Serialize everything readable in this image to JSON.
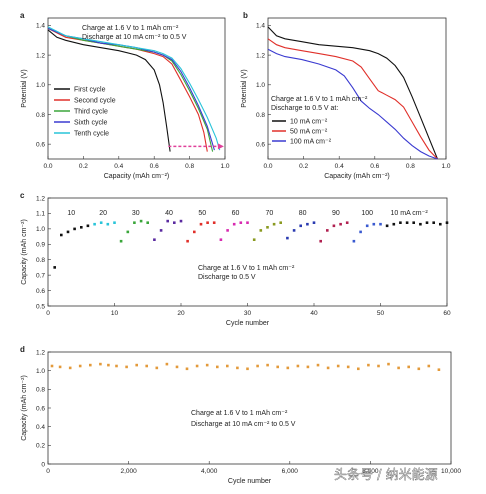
{
  "watermark": "头条号 / 纳米能源",
  "chart_data": [
    {
      "panel": "a",
      "type": "line",
      "xlabel": "Capacity (mAh cm⁻²)",
      "ylabel": "Potential (V)",
      "xlim": [
        0,
        1.0
      ],
      "ylim": [
        0.5,
        1.45
      ],
      "xticks": [
        "0.0",
        "0.2",
        "0.4",
        "0.6",
        "0.8",
        "1.0"
      ],
      "yticks": [
        "0.6",
        "0.8",
        "1.0",
        "1.2",
        "1.4"
      ],
      "annotations": [
        "Charge at 1.6 V to 1 mAh cm⁻²",
        "Discharge at 10 mA cm⁻² to 0.5 V"
      ],
      "series": [
        {
          "name": "First cycle",
          "color": "#111111",
          "x": [
            0,
            0.05,
            0.1,
            0.2,
            0.3,
            0.4,
            0.5,
            0.55,
            0.6,
            0.63,
            0.65,
            0.67,
            0.69
          ],
          "y": [
            1.37,
            1.32,
            1.3,
            1.27,
            1.25,
            1.23,
            1.2,
            1.17,
            1.1,
            1.0,
            0.88,
            0.72,
            0.55
          ]
        },
        {
          "name": "Second cycle",
          "color": "#e0302a",
          "x": [
            0,
            0.1,
            0.2,
            0.3,
            0.4,
            0.5,
            0.6,
            0.65,
            0.7,
            0.75,
            0.8,
            0.85,
            0.88,
            0.9
          ],
          "y": [
            1.38,
            1.32,
            1.3,
            1.28,
            1.26,
            1.24,
            1.21,
            1.19,
            1.14,
            1.03,
            0.92,
            0.8,
            0.68,
            0.55
          ]
        },
        {
          "name": "Third cycle",
          "color": "#3aa63a",
          "x": [
            0,
            0.1,
            0.2,
            0.3,
            0.4,
            0.5,
            0.6,
            0.65,
            0.7,
            0.75,
            0.8,
            0.85,
            0.9,
            0.93
          ],
          "y": [
            1.38,
            1.33,
            1.3,
            1.28,
            1.26,
            1.24,
            1.22,
            1.2,
            1.16,
            1.07,
            0.96,
            0.84,
            0.7,
            0.55
          ]
        },
        {
          "name": "Sixth cycle",
          "color": "#3a3ad0",
          "x": [
            0,
            0.1,
            0.2,
            0.3,
            0.4,
            0.5,
            0.6,
            0.65,
            0.7,
            0.75,
            0.8,
            0.85,
            0.9,
            0.94
          ],
          "y": [
            1.38,
            1.33,
            1.31,
            1.28,
            1.27,
            1.25,
            1.22,
            1.2,
            1.17,
            1.09,
            0.98,
            0.86,
            0.72,
            0.56
          ]
        },
        {
          "name": "Tenth cycle",
          "color": "#29c4d9",
          "x": [
            0,
            0.1,
            0.2,
            0.3,
            0.4,
            0.5,
            0.6,
            0.65,
            0.7,
            0.75,
            0.8,
            0.85,
            0.9,
            0.95,
            0.97
          ],
          "y": [
            1.39,
            1.33,
            1.31,
            1.29,
            1.27,
            1.25,
            1.23,
            1.21,
            1.18,
            1.11,
            1.01,
            0.9,
            0.78,
            0.64,
            0.56
          ]
        }
      ],
      "arrow": {
        "color": "#e0409a",
        "x": [
          0.68,
          0.96
        ],
        "y": 0.585
      }
    },
    {
      "panel": "b",
      "type": "line",
      "xlabel": "Capacity (mAh cm⁻²)",
      "ylabel": "Potential (V)",
      "xlim": [
        0,
        1.05
      ],
      "ylim": [
        0.5,
        1.45
      ],
      "xticks": [
        "0.0",
        "0.2",
        "0.4",
        "0.6",
        "0.8",
        "1.0"
      ],
      "yticks": [
        "0.6",
        "0.8",
        "1.0",
        "1.2",
        "1.4"
      ],
      "annotations": [
        "Charge at 1.6 V to 1 mAh cm⁻²",
        "Discharge to 0.5 V at:"
      ],
      "series": [
        {
          "name": "10 mA cm⁻²",
          "color": "#111111",
          "x": [
            0,
            0.05,
            0.1,
            0.2,
            0.3,
            0.4,
            0.5,
            0.6,
            0.65,
            0.7,
            0.75,
            0.8,
            0.85,
            0.9,
            0.95,
            1.0
          ],
          "y": [
            1.39,
            1.33,
            1.31,
            1.29,
            1.27,
            1.26,
            1.25,
            1.23,
            1.21,
            1.18,
            1.13,
            1.05,
            0.92,
            0.78,
            0.64,
            0.5
          ]
        },
        {
          "name": "50 mA cm⁻²",
          "color": "#e0302a",
          "x": [
            0,
            0.05,
            0.1,
            0.2,
            0.3,
            0.4,
            0.5,
            0.55,
            0.6,
            0.65,
            0.7,
            0.75,
            0.8,
            0.85,
            0.9,
            0.95,
            1.0
          ],
          "y": [
            1.31,
            1.27,
            1.25,
            1.23,
            1.21,
            1.19,
            1.16,
            1.12,
            1.04,
            0.96,
            0.93,
            0.9,
            0.85,
            0.75,
            0.65,
            0.56,
            0.5
          ]
        },
        {
          "name": "100 mA cm⁻²",
          "color": "#3a3ad0",
          "x": [
            0,
            0.05,
            0.1,
            0.2,
            0.3,
            0.4,
            0.45,
            0.5,
            0.55,
            0.6,
            0.65,
            0.7,
            0.75,
            0.8,
            0.85,
            0.9,
            0.95,
            1.0
          ],
          "y": [
            1.24,
            1.21,
            1.19,
            1.17,
            1.14,
            1.1,
            1.06,
            0.98,
            0.89,
            0.84,
            0.8,
            0.75,
            0.7,
            0.64,
            0.59,
            0.55,
            0.52,
            0.5
          ]
        }
      ]
    },
    {
      "panel": "c",
      "type": "scatter",
      "xlabel": "Cycle number",
      "ylabel": "Capacity (mAh cm⁻²)",
      "xlim": [
        0,
        60
      ],
      "ylim": [
        0.5,
        1.2
      ],
      "xticks": [
        "0",
        "10",
        "20",
        "30",
        "40",
        "50",
        "60"
      ],
      "yticks": [
        "0.5",
        "0.6",
        "0.7",
        "0.8",
        "0.9",
        "1.0",
        "1.1",
        "1.2"
      ],
      "annotations": [
        "Charge at 1.6 V to 1 mAh cm⁻²",
        "Discharge to 0.5 V"
      ],
      "rate_labels": [
        {
          "text": "10",
          "x": 3.5,
          "color": "#111111"
        },
        {
          "text": "20",
          "x": 8.3,
          "color": "#29c4d9"
        },
        {
          "text": "30",
          "x": 13.2,
          "color": "#3aa63a"
        },
        {
          "text": "40",
          "x": 18.2,
          "color": "#5a2aa0"
        },
        {
          "text": "50",
          "x": 23.2,
          "color": "#e0302a"
        },
        {
          "text": "60",
          "x": 28.2,
          "color": "#d82ab0"
        },
        {
          "text": "70",
          "x": 33.3,
          "color": "#8a9a20"
        },
        {
          "text": "80",
          "x": 38.3,
          "color": "#2a3ab0"
        },
        {
          "text": "90",
          "x": 43.3,
          "color": "#b02050"
        },
        {
          "text": "100",
          "x": 48.0,
          "color": "#3a5ad0"
        },
        {
          "text": "10 mA cm⁻²",
          "x": 54.3,
          "color": "#111111"
        }
      ],
      "series": [
        {
          "name": "10",
          "color": "#111111",
          "x": [
            1,
            2,
            3,
            4,
            5,
            6
          ],
          "y": [
            0.75,
            0.96,
            0.98,
            1.0,
            1.01,
            1.02
          ]
        },
        {
          "name": "20",
          "color": "#29c4d9",
          "x": [
            7,
            8,
            9,
            10
          ],
          "y": [
            1.03,
            1.04,
            1.03,
            1.04
          ]
        },
        {
          "name": "30",
          "color": "#3aa63a",
          "x": [
            11,
            12,
            13,
            14,
            15
          ],
          "y": [
            0.92,
            0.98,
            1.04,
            1.05,
            1.04
          ]
        },
        {
          "name": "40",
          "color": "#5a2aa0",
          "x": [
            16,
            17,
            18,
            19,
            20
          ],
          "y": [
            0.93,
            0.99,
            1.05,
            1.04,
            1.05
          ]
        },
        {
          "name": "50",
          "color": "#e0302a",
          "x": [
            21,
            22,
            23,
            24,
            25
          ],
          "y": [
            0.92,
            0.98,
            1.03,
            1.04,
            1.04
          ]
        },
        {
          "name": "60",
          "color": "#d82ab0",
          "x": [
            26,
            27,
            28,
            29,
            30
          ],
          "y": [
            0.93,
            0.99,
            1.03,
            1.04,
            1.04
          ]
        },
        {
          "name": "70",
          "color": "#8a9a20",
          "x": [
            31,
            32,
            33,
            34,
            35
          ],
          "y": [
            0.93,
            0.99,
            1.01,
            1.03,
            1.04
          ]
        },
        {
          "name": "80",
          "color": "#2a3ab0",
          "x": [
            36,
            37,
            38,
            39,
            40
          ],
          "y": [
            0.94,
            0.99,
            1.02,
            1.03,
            1.04
          ]
        },
        {
          "name": "90",
          "color": "#b02050",
          "x": [
            41,
            42,
            43,
            44,
            45
          ],
          "y": [
            0.92,
            0.99,
            1.02,
            1.03,
            1.04
          ]
        },
        {
          "name": "100",
          "color": "#3a5ad0",
          "x": [
            46,
            47,
            48,
            49,
            50
          ],
          "y": [
            0.92,
            0.98,
            1.02,
            1.03,
            1.03
          ]
        },
        {
          "name": "10 mA cm⁻²",
          "color": "#111111",
          "x": [
            51,
            52,
            53,
            54,
            55,
            56,
            57,
            58,
            59,
            60
          ],
          "y": [
            1.02,
            1.03,
            1.04,
            1.04,
            1.04,
            1.03,
            1.04,
            1.04,
            1.03,
            1.04
          ]
        }
      ]
    },
    {
      "panel": "d",
      "type": "scatter",
      "xlabel": "Cycle number",
      "ylabel": "Capacity (mAh cm⁻²)",
      "xlim": [
        0,
        10000
      ],
      "ylim": [
        0,
        1.2
      ],
      "xticks": [
        "0",
        "2,000",
        "4,000",
        "6,000",
        "8,000",
        "10,000"
      ],
      "yticks": [
        "0",
        "0.2",
        "0.4",
        "0.6",
        "0.8",
        "1.0",
        "1.2"
      ],
      "annotations": [
        "Charge at 1.6 V to 1 mAh cm⁻²",
        "Discharge at 10 mA cm⁻² to 0.5 V"
      ],
      "series": [
        {
          "name": "capacity",
          "color": "#e39a3a",
          "x": [
            100,
            300,
            550,
            800,
            1050,
            1300,
            1500,
            1700,
            1950,
            2200,
            2450,
            2700,
            2950,
            3200,
            3450,
            3700,
            3950,
            4200,
            4450,
            4700,
            4950,
            5200,
            5450,
            5700,
            5950,
            6200,
            6450,
            6700,
            6950,
            7200,
            7450,
            7700,
            7950,
            8200,
            8450,
            8700,
            8950,
            9200,
            9450,
            9700
          ],
          "y": [
            1.05,
            1.04,
            1.03,
            1.05,
            1.06,
            1.07,
            1.06,
            1.05,
            1.04,
            1.06,
            1.05,
            1.03,
            1.07,
            1.04,
            1.02,
            1.05,
            1.06,
            1.04,
            1.05,
            1.03,
            1.02,
            1.05,
            1.06,
            1.04,
            1.03,
            1.05,
            1.04,
            1.06,
            1.03,
            1.05,
            1.04,
            1.02,
            1.06,
            1.05,
            1.07,
            1.03,
            1.04,
            1.02,
            1.05,
            1.01
          ]
        }
      ]
    }
  ]
}
